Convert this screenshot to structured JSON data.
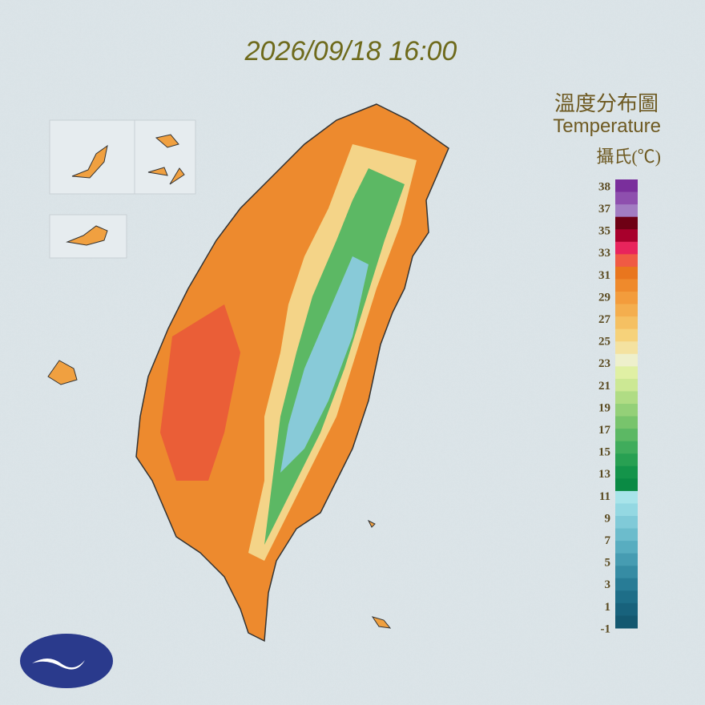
{
  "header": {
    "timestamp": "2026/09/18 16:00"
  },
  "legend": {
    "title_zh": "溫度分布圖",
    "title_en": "Temperature",
    "unit": "攝氏(℃)",
    "ticks": [
      38,
      37,
      35,
      33,
      31,
      29,
      27,
      25,
      23,
      21,
      19,
      17,
      15,
      13,
      11,
      9,
      7,
      5,
      3,
      1,
      -1
    ],
    "colors": [
      "#7a2f9c",
      "#8e4fae",
      "#a27cc2",
      "#6e0014",
      "#a8002c",
      "#e8245c",
      "#f05a44",
      "#e9761e",
      "#ef8a2c",
      "#f39c3c",
      "#f4ae4e",
      "#f5c062",
      "#f6d27a",
      "#f4e2a0",
      "#eef0cc",
      "#e0f0a4",
      "#cce894",
      "#b0dc84",
      "#94d078",
      "#78c46c",
      "#5cb864",
      "#40ac5c",
      "#28a052",
      "#14944a",
      "#0a8a44",
      "#a8e4ea",
      "#94d8e2",
      "#80cad8",
      "#6cbccc",
      "#58adc0",
      "#469cb2",
      "#368ca4",
      "#287c96",
      "#1e6e88",
      "#18627c",
      "#145870"
    ]
  }
}
